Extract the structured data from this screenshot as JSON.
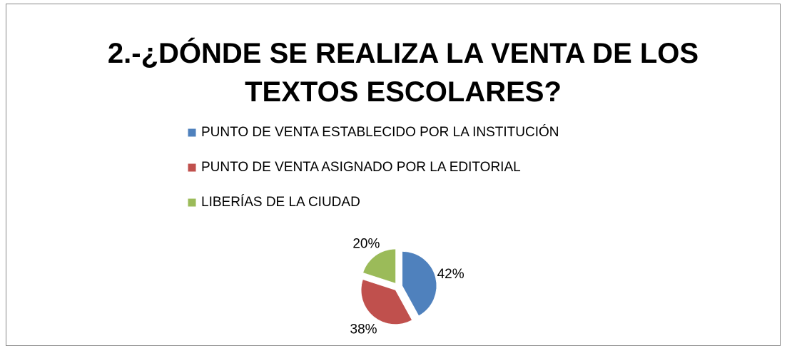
{
  "chart_data": {
    "type": "pie",
    "title": "2.-¿DÓNDE SE REALIZA LA VENTA DE LOS TEXTOS ESCOLARES?",
    "categories": [
      "PUNTO DE VENTA ESTABLECIDO POR LA INSTITUCIÓN",
      "PUNTO DE VENTA ASIGNADO POR LA EDITORIAL",
      "LIBERÍAS DE LA CIUDAD"
    ],
    "values": [
      42,
      38,
      20
    ],
    "value_labels": [
      "42%",
      "38%",
      "20%"
    ],
    "colors": [
      "#4f81bd",
      "#c0504d",
      "#9bbb59"
    ],
    "legend": "top"
  }
}
